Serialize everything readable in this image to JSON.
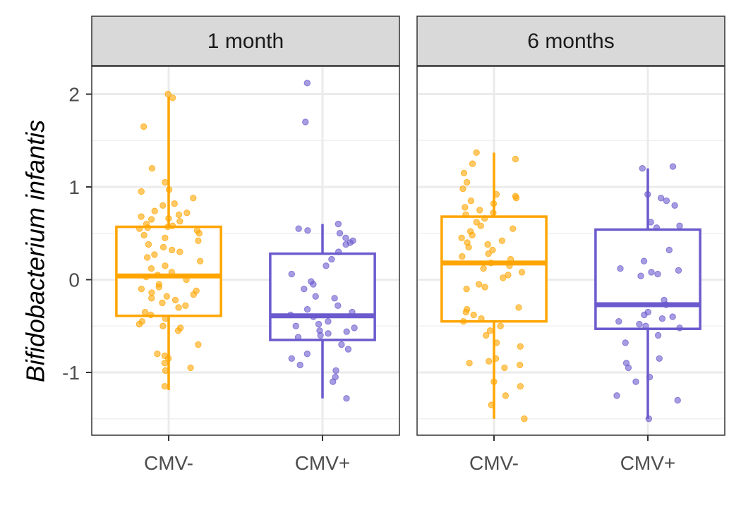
{
  "chart_data": {
    "type": "box",
    "ylabel": "Bifidobacterium infantis",
    "xlabel": "",
    "categories": [
      "CMV-",
      "CMV+"
    ],
    "colors": {
      "CMV-": "#ffa500",
      "CMV+": "#6a5acd"
    },
    "ylim": [
      -1.7,
      2.3
    ],
    "yticks": [
      -1,
      0,
      1,
      2
    ],
    "grid": true,
    "legend": "none",
    "panels": [
      {
        "label": "1 month",
        "groups": [
          {
            "category": "CMV-",
            "stats": {
              "whisker_low": -1.19,
              "q1": -0.39,
              "median": 0.04,
              "q3": 0.57,
              "whisker_high": 1.97
            },
            "points": [
              2.0,
              1.96,
              1.65,
              1.2,
              1.05,
              0.97,
              0.95,
              0.88,
              0.82,
              0.8,
              0.74,
              0.72,
              0.7,
              0.68,
              0.66,
              0.65,
              0.63,
              0.6,
              0.58,
              0.57,
              0.56,
              0.55,
              0.53,
              0.5,
              0.48,
              0.45,
              0.42,
              0.38,
              0.35,
              0.32,
              0.3,
              0.27,
              0.24,
              0.2,
              0.15,
              0.12,
              0.08,
              0.05,
              0.03,
              0.0,
              -0.05,
              -0.08,
              -0.1,
              -0.12,
              -0.14,
              -0.16,
              -0.18,
              -0.2,
              -0.22,
              -0.25,
              -0.28,
              -0.3,
              -0.35,
              -0.38,
              -0.42,
              -0.45,
              -0.48,
              -0.5,
              -0.52,
              -0.55,
              -0.7,
              -0.8,
              -0.82,
              -0.85,
              -0.9,
              -0.95,
              -0.98,
              -1.15
            ]
          },
          {
            "category": "CMV+",
            "stats": {
              "whisker_low": -1.28,
              "q1": -0.65,
              "median": -0.39,
              "q3": 0.28,
              "whisker_high": 0.6
            },
            "points": [
              2.12,
              1.7,
              0.6,
              0.55,
              0.53,
              0.5,
              0.45,
              0.42,
              0.4,
              0.38,
              0.3,
              0.22,
              0.15,
              0.06,
              -0.02,
              -0.05,
              -0.1,
              -0.18,
              -0.2,
              -0.28,
              -0.32,
              -0.35,
              -0.38,
              -0.4,
              -0.45,
              -0.48,
              -0.5,
              -0.52,
              -0.55,
              -0.56,
              -0.58,
              -0.6,
              -0.62,
              -0.7,
              -0.75,
              -0.8,
              -0.85,
              -0.92,
              -0.98,
              -1.05,
              -1.1,
              -1.28
            ]
          }
        ]
      },
      {
        "label": "6 months",
        "groups": [
          {
            "category": "CMV-",
            "stats": {
              "whisker_low": -1.5,
              "q1": -0.45,
              "median": 0.18,
              "q3": 0.68,
              "whisker_high": 1.37
            },
            "points": [
              1.37,
              1.3,
              1.25,
              1.15,
              1.05,
              0.98,
              0.92,
              0.9,
              0.88,
              0.85,
              0.82,
              0.78,
              0.75,
              0.72,
              0.7,
              0.66,
              0.62,
              0.58,
              0.55,
              0.52,
              0.48,
              0.45,
              0.42,
              0.4,
              0.38,
              0.35,
              0.32,
              0.28,
              0.25,
              0.22,
              0.18,
              0.15,
              0.12,
              0.08,
              0.05,
              0.02,
              -0.05,
              -0.08,
              -0.1,
              -0.3,
              -0.32,
              -0.35,
              -0.38,
              -0.42,
              -0.45,
              -0.5,
              -0.55,
              -0.6,
              -0.68,
              -0.72,
              -0.85,
              -0.88,
              -0.9,
              -0.92,
              -0.95,
              -1.1,
              -1.15,
              -1.25,
              -1.35,
              -1.5
            ]
          },
          {
            "category": "CMV+",
            "stats": {
              "whisker_low": -1.5,
              "q1": -0.53,
              "median": -0.27,
              "q3": 0.54,
              "whisker_high": 1.2
            },
            "points": [
              1.22,
              1.2,
              0.92,
              0.88,
              0.85,
              0.8,
              0.62,
              0.58,
              0.56,
              0.32,
              0.2,
              0.12,
              0.1,
              0.08,
              0.06,
              0.04,
              -0.22,
              -0.27,
              -0.35,
              -0.38,
              -0.4,
              -0.42,
              -0.45,
              -0.48,
              -0.5,
              -0.52,
              -0.6,
              -0.68,
              -0.85,
              -0.9,
              -0.95,
              -1.05,
              -1.1,
              -1.25,
              -1.3,
              -1.5
            ]
          }
        ]
      }
    ]
  }
}
